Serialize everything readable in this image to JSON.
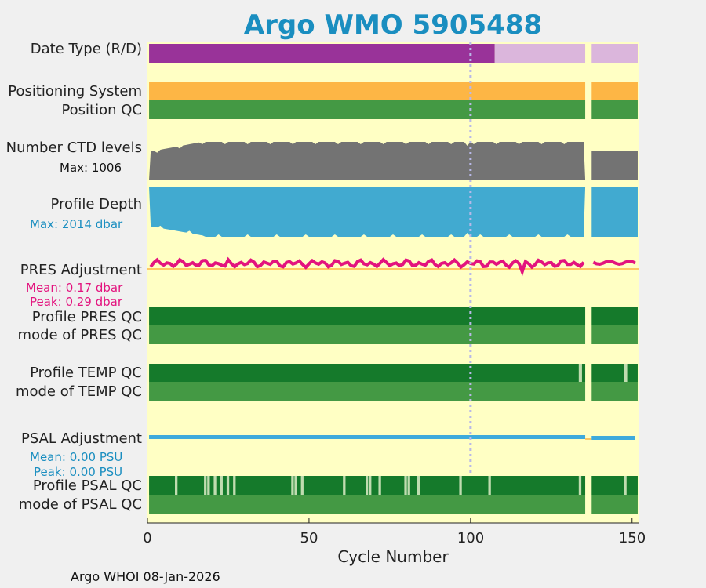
{
  "chart_data": {
    "type": "bar",
    "title": "Argo WMO 5905488",
    "xlabel": "Cycle Number",
    "xlim": [
      0,
      152
    ],
    "xticks": [
      "0",
      "50",
      "100",
      "150"
    ],
    "gap_cycles": [
      136,
      137
    ],
    "rows": {
      "date_type": {
        "label": "Date Type (R/D)",
        "realtime_until": 107,
        "delayed_from": 108
      },
      "positioning_system": {
        "label": "Positioning System"
      },
      "position_qc": {
        "label": "Position QC"
      },
      "ctd_levels": {
        "label": "Number CTD levels",
        "max_text": "Max: 1006",
        "max": 1006
      },
      "profile_depth": {
        "label": "Profile Depth",
        "max_text": "Max: 2014 dbar",
        "max": 2014
      },
      "pres_adjustment": {
        "label": "PRES Adjustment",
        "mean_text": "Mean: 0.17 dbar",
        "peak_text": "Peak: 0.29 dbar",
        "mean": 0.17,
        "peak": 0.29
      },
      "profile_pres_qc": {
        "label": "Profile PRES QC"
      },
      "mode_pres_qc": {
        "label": "mode of PRES QC"
      },
      "profile_temp_qc": {
        "label": "Profile TEMP QC",
        "flagged_cycles": [
          134,
          148
        ]
      },
      "mode_temp_qc": {
        "label": "mode of TEMP QC"
      },
      "psal_adjustment": {
        "label": "PSAL Adjustment",
        "mean_text": "Mean: 0.00 PSU",
        "peak_text": "Peak: 0.00 PSU",
        "mean": 0.0,
        "peak": 0.0
      },
      "profile_psal_qc": {
        "label": "Profile PSAL QC",
        "flagged_cycles": [
          9,
          18,
          19,
          21,
          23,
          25,
          27,
          45,
          46,
          48,
          61,
          68,
          69,
          72,
          80,
          81,
          84,
          97,
          106,
          134,
          148
        ]
      },
      "mode_psal_qc": {
        "label": "mode of PSAL QC"
      }
    }
  },
  "colors": {
    "background": "#ffffc4",
    "realtime": "#993399",
    "delayed": "#dbb6dc",
    "positioning": "#fdb645",
    "qc_good_light": "#449944",
    "qc_good_dark": "#157a2b",
    "qc_flag": "#c0dcb0",
    "ctd_levels": "#737373",
    "depth": "#41aad0",
    "pres_adj": "#e3137e",
    "psal_adj": "#3eaadc",
    "title": "#1a8ec0"
  },
  "footer": "Argo WHOI 08-Jan-2026"
}
